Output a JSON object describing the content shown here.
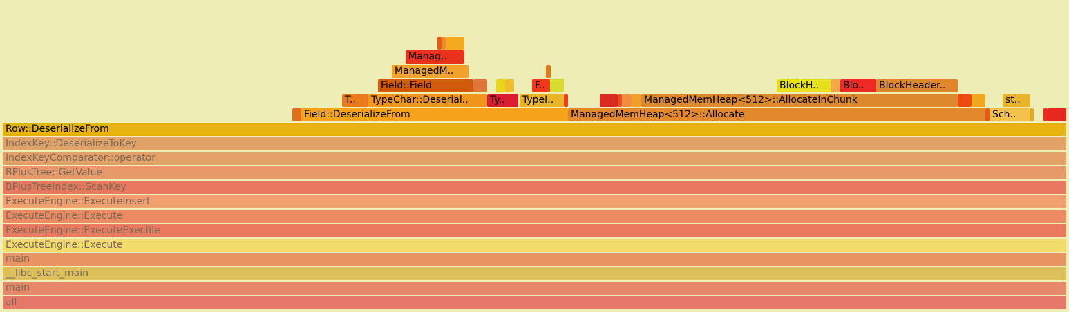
{
  "frames": [
    {
      "label": "",
      "color": "#e85a0d",
      "dim": false
    },
    {
      "label": "",
      "color": "#f08a30",
      "dim": false
    },
    {
      "label": "",
      "color": "#f5a91e",
      "dim": false
    },
    {
      "label": "Manag..",
      "color": "#e8321c",
      "dim": false
    },
    {
      "label": "ManagedM..",
      "color": "#f0a22a",
      "dim": false
    },
    {
      "label": "",
      "color": "#e07a18",
      "dim": false
    },
    {
      "label": "Field::Field",
      "color": "#d25a0c",
      "dim": false
    },
    {
      "label": "",
      "color": "#e0743a",
      "dim": false
    },
    {
      "label": "",
      "color": "#e8d61c",
      "dim": false
    },
    {
      "label": "",
      "color": "#f0be2a",
      "dim": false
    },
    {
      "label": "F..",
      "color": "#f2381c",
      "dim": false
    },
    {
      "label": "",
      "color": "#d8dc2e",
      "dim": false
    },
    {
      "label": "BlockH..",
      "color": "#e6e01c",
      "dim": false
    },
    {
      "label": "",
      "color": "#f0a848",
      "dim": false
    },
    {
      "label": "Blo..",
      "color": "#ee2a26",
      "dim": false
    },
    {
      "label": "BlockHeader..",
      "color": "#e0862c",
      "dim": false
    },
    {
      "label": "T..",
      "color": "#ea7a1a",
      "dim": false
    },
    {
      "label": "TypeChar::Deserial..",
      "color": "#f0961c",
      "dim": false
    },
    {
      "label": "Ty..",
      "color": "#dc1c30",
      "dim": false
    },
    {
      "label": "TypeI..",
      "color": "#e8b428",
      "dim": false
    },
    {
      "label": "",
      "color": "#f03e1c",
      "dim": false
    },
    {
      "label": "",
      "color": "#d82a1e",
      "dim": false
    },
    {
      "label": "",
      "color": "#e84e22",
      "dim": false
    },
    {
      "label": "",
      "color": "#f28c3e",
      "dim": false
    },
    {
      "label": "",
      "color": "#f0a028",
      "dim": false
    },
    {
      "label": "ManagedMemHeap<512>::AllocateInChunk",
      "color": "#dc882c",
      "dim": false
    },
    {
      "label": "",
      "color": "#ec4a10",
      "dim": false
    },
    {
      "label": "",
      "color": "#f2a81e",
      "dim": false
    },
    {
      "label": "st..",
      "color": "#e8b42c",
      "dim": false
    },
    {
      "label": "",
      "color": "#e0701e",
      "dim": false
    },
    {
      "label": "Field::DeserializeFrom",
      "color": "#f6a21a",
      "dim": false
    },
    {
      "label": "ManagedMemHeap<512>::Allocate",
      "color": "#e4882c",
      "dim": false
    },
    {
      "label": "",
      "color": "#e85a1c",
      "dim": false
    },
    {
      "label": "Sch..",
      "color": "#f4c24a",
      "dim": false
    },
    {
      "label": "",
      "color": "#e4a81e",
      "dim": false
    },
    {
      "label": "",
      "color": "#ee2a1e",
      "dim": false
    },
    {
      "label": "",
      "color": "#e8281e",
      "dim": false
    },
    {
      "label": "Row::DeserializeFrom",
      "color": "#e6b312",
      "dim": false
    },
    {
      "label": "IndexKey::DeserializeToKey",
      "color": "#e0a266",
      "dim": true
    },
    {
      "label": "IndexKeyComparator::operator",
      "color": "#e3a167",
      "dim": true
    },
    {
      "label": "BPlusTree::GetValue",
      "color": "#e69a6a",
      "dim": true
    },
    {
      "label": "BPlusTreeIndex::ScanKey",
      "color": "#e8785e",
      "dim": true
    },
    {
      "label": "ExecuteEngine::ExecuteInsert",
      "color": "#f2a070",
      "dim": true
    },
    {
      "label": "ExecuteEngine::Execute",
      "color": "#ec8a64",
      "dim": true
    },
    {
      "label": "ExecuteEngine::ExecuteExecfile",
      "color": "#ea7a5e",
      "dim": true
    },
    {
      "label": "ExecuteEngine::Execute",
      "color": "#f2dc6c",
      "dim": true
    },
    {
      "label": "main",
      "color": "#e89462",
      "dim": true
    },
    {
      "label": "__libc_start_main",
      "color": "#dcc05c",
      "dim": true
    },
    {
      "label": "main",
      "color": "#e6896a",
      "dim": true
    },
    {
      "label": "all",
      "color": "#e6786a",
      "dim": true
    }
  ]
}
